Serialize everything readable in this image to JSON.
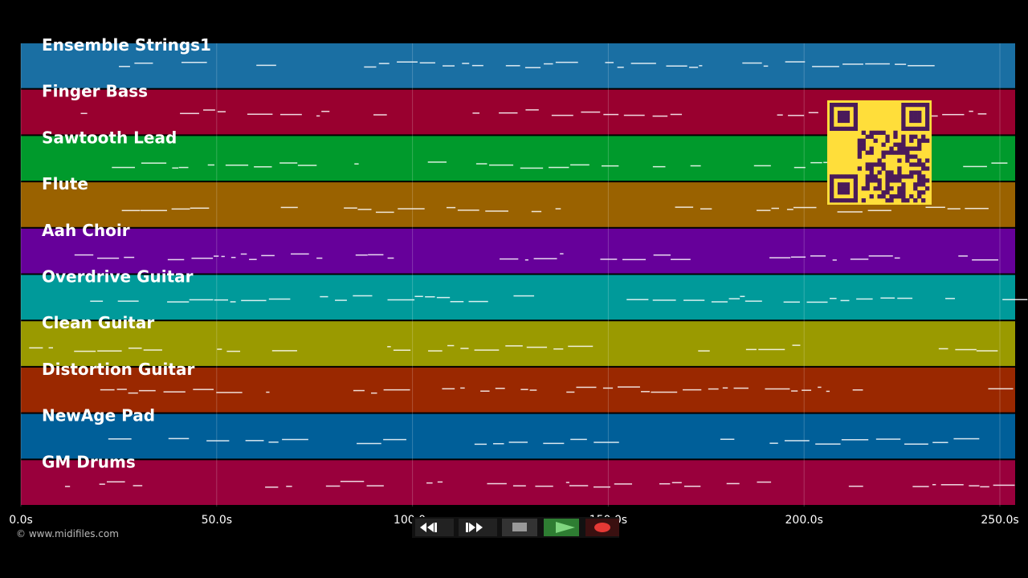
{
  "tracks": [
    {
      "name": "Ensemble Strings1",
      "color": "#1a6fa3"
    },
    {
      "name": "Finger Bass",
      "color": "#99002f"
    },
    {
      "name": "Sawtooth Lead",
      "color": "#009a2c"
    },
    {
      "name": "Flute",
      "color": "#9a6200"
    },
    {
      "name": "Aah Choir",
      "color": "#66009a"
    },
    {
      "name": "Overdrive Guitar",
      "color": "#009a9a"
    },
    {
      "name": "Clean Guitar",
      "color": "#9a9a00"
    },
    {
      "name": "Distortion Guitar",
      "color": "#9a2800"
    },
    {
      "name": "NewAge Pad",
      "color": "#005f99"
    },
    {
      "name": "GM Drums",
      "color": "#99003c"
    }
  ],
  "time_axis": {
    "labels": [
      "0.0s",
      "50.0s",
      "100.0s",
      "150.0s",
      "200.0s",
      "250.0s"
    ]
  },
  "copyright": "© www.midifiles.com"
}
